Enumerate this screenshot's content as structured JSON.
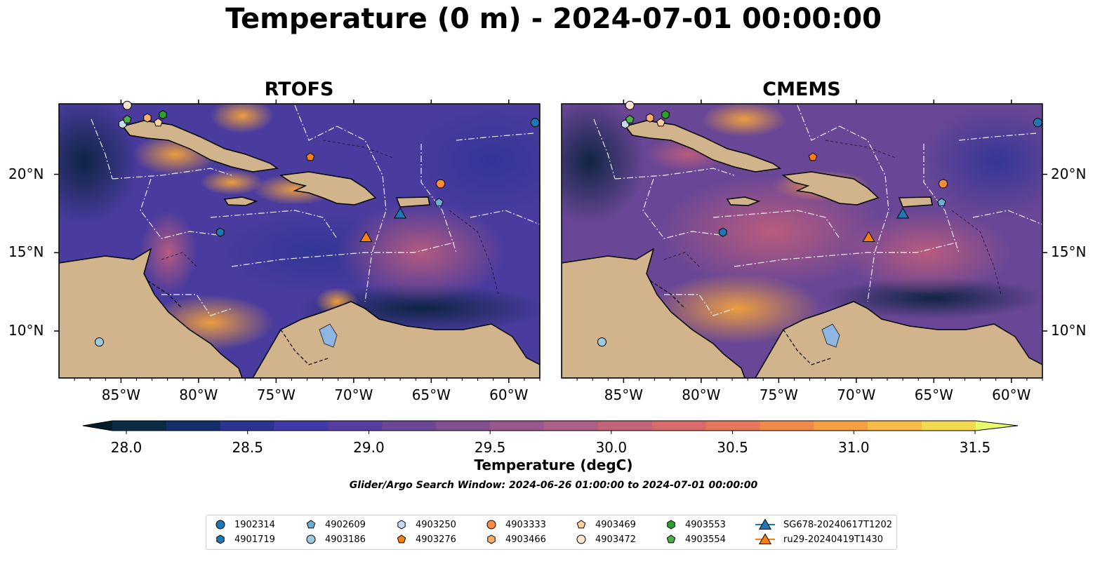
{
  "title": "Temperature (0 m) - 2024-07-01 00:00:00",
  "panels": [
    {
      "title": "RTOFS"
    },
    {
      "title": "CMEMS"
    }
  ],
  "x_ticks": [
    "85°W",
    "80°W",
    "75°W",
    "70°W",
    "65°W",
    "60°W"
  ],
  "x_tick_values": [
    -85,
    -80,
    -75,
    -70,
    -65,
    -60
  ],
  "y_ticks": [
    "20°N",
    "15°N",
    "10°N"
  ],
  "y_tick_values": [
    20,
    15,
    10
  ],
  "extent": {
    "lon": [
      -89,
      -58
    ],
    "lat": [
      7,
      24.5
    ]
  },
  "colorbar": {
    "label": "Temperature (degC)",
    "ticks": [
      "28.0",
      "28.5",
      "29.0",
      "29.5",
      "30.0",
      "30.5",
      "31.0",
      "31.5"
    ],
    "min": 28.0,
    "max": 31.5,
    "step": 0.25,
    "colors": [
      "#0a2a45",
      "#13306a",
      "#2a3592",
      "#3e3aa8",
      "#553e9e",
      "#6b4796",
      "#814f92",
      "#98588e",
      "#ad5f86",
      "#c1647c",
      "#d66b6a",
      "#e5785a",
      "#f08a49",
      "#f6a046",
      "#f7bb48",
      "#f2d94f"
    ],
    "under_color": "#061c2b",
    "over_color": "#e9fa6a"
  },
  "search_window": "Glider/Argo Search Window: 2024-06-26 01:00:00 to 2024-07-01 00:00:00",
  "colors": {
    "land": "#d2b48c",
    "ocean_base": "#55409c",
    "glider_blue": "#1f77b4",
    "glider_orange": "#ff7f0e"
  },
  "legend": [
    {
      "label": "1902314",
      "marker": "circle",
      "color": "#1f77b4"
    },
    {
      "label": "4901719",
      "marker": "hexagon",
      "color": "#1f77b4"
    },
    {
      "label": "4902609",
      "marker": "pentagon",
      "color": "#6baed6"
    },
    {
      "label": "4903186",
      "marker": "circle",
      "color": "#9ecae1"
    },
    {
      "label": "4903250",
      "marker": "hexagon",
      "color": "#c6dbef"
    },
    {
      "label": "4903276",
      "marker": "pentagon",
      "color": "#ff7f0e"
    },
    {
      "label": "4903333",
      "marker": "circle",
      "color": "#fd8d3c"
    },
    {
      "label": "4903466",
      "marker": "hexagon",
      "color": "#fdae6b"
    },
    {
      "label": "4903469",
      "marker": "pentagon",
      "color": "#fdd0a2"
    },
    {
      "label": "4903472",
      "marker": "circle",
      "color": "#fee6ce"
    },
    {
      "label": "4903553",
      "marker": "hexagon",
      "color": "#2ca02c"
    },
    {
      "label": "4903554",
      "marker": "pentagon",
      "color": "#4daf4a"
    },
    {
      "label": "SG678-20240617T1202",
      "marker": "triangle-line",
      "color": "#1f77b4"
    },
    {
      "label": "ru29-20240419T1430",
      "marker": "triangle-line",
      "color": "#ff7f0e"
    }
  ],
  "markers": [
    {
      "id": "1902314",
      "lon": -58.3,
      "lat": 23.3
    },
    {
      "id": "4903186",
      "lon": -86.4,
      "lat": 9.3
    },
    {
      "id": "4901719",
      "lon": -78.6,
      "lat": 16.3
    },
    {
      "id": "4902609",
      "lon": -64.5,
      "lat": 18.2
    },
    {
      "id": "4903333",
      "lon": -64.4,
      "lat": 19.4
    },
    {
      "id": "4903276",
      "lon": -72.8,
      "lat": 21.1
    },
    {
      "id": "4903250",
      "lon": -84.9,
      "lat": 23.2
    },
    {
      "id": "4903553",
      "lon": -82.3,
      "lat": 23.8
    },
    {
      "id": "4903554",
      "lon": -84.6,
      "lat": 23.5
    },
    {
      "id": "4903466",
      "lon": -83.3,
      "lat": 23.6
    },
    {
      "id": "4903469",
      "lon": -82.6,
      "lat": 23.3
    },
    {
      "id": "4903472",
      "lon": -84.6,
      "lat": 24.4
    },
    {
      "id": "SG678-20240617T1202",
      "lon": -67.0,
      "lat": 17.5
    },
    {
      "id": "ru29-20240419T1430",
      "lon": -69.2,
      "lat": 16.0
    }
  ]
}
